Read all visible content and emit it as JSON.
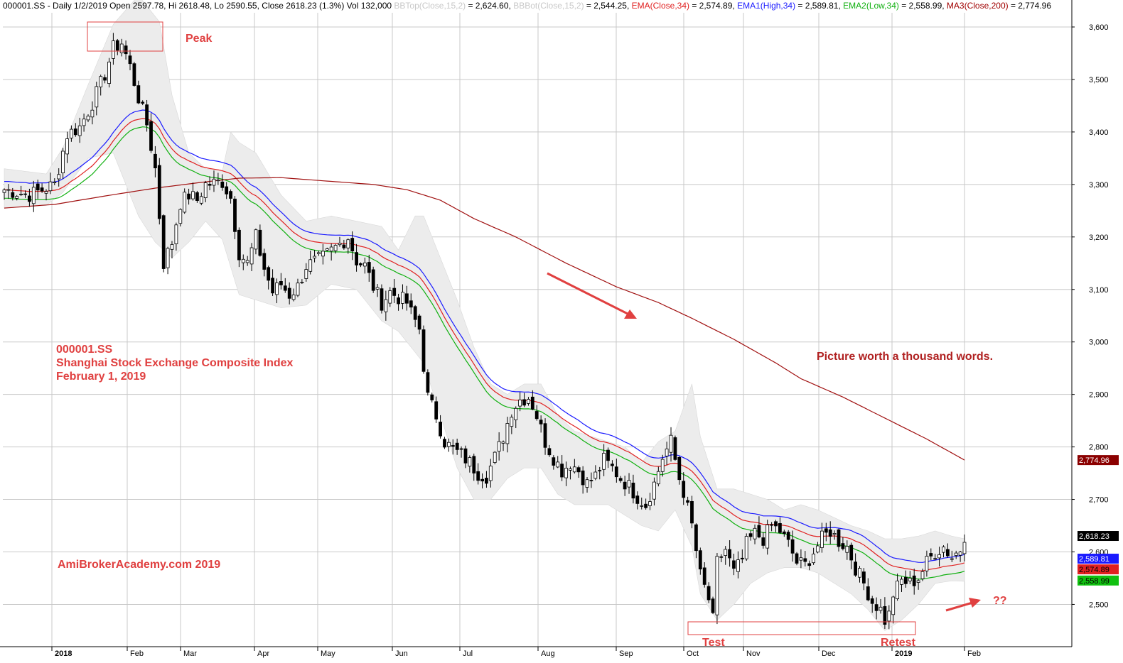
{
  "header": {
    "segments": [
      {
        "text": "000001.SS - Daily 1/2/2019 Open 2597.78, Hi 2618.48, Lo 2590.55, Close 2618.23 (1.3%) Vol 132,000 ",
        "color": "#000000"
      },
      {
        "text": "BBTop(Close,15,2)",
        "color": "#c8c8c8"
      },
      {
        "text": " = 2,624.60, ",
        "color": "#000000"
      },
      {
        "text": "BBBot(Close,15,2)",
        "color": "#c8c8c8"
      },
      {
        "text": " = 2,544.25, ",
        "color": "#000000"
      },
      {
        "text": "EMA(Close,34)",
        "color": "#e02020"
      },
      {
        "text": " = 2,574.89, ",
        "color": "#000000"
      },
      {
        "text": "EMA1(High,34)",
        "color": "#1a1aff"
      },
      {
        "text": " = 2,589.81, ",
        "color": "#000000"
      },
      {
        "text": "EMA2(Low,34)",
        "color": "#10b010"
      },
      {
        "text": " = 2,558.99, ",
        "color": "#000000"
      },
      {
        "text": "MA3(Close,200)",
        "color": "#a00000"
      },
      {
        "text": " = 2,774.96",
        "color": "#000000"
      }
    ]
  },
  "annotations": {
    "peak": "Peak",
    "symbol": "000001.SS",
    "index_name": "Shanghai Stock Exchange Composite Index",
    "date": "February 1, 2019",
    "watermark": "AmiBrokerAcademy.com  2019",
    "quote": "Picture worth a thousand words.",
    "test": "Test",
    "retest": "Retest",
    "question": "??"
  },
  "colors": {
    "annotation": "#e04040",
    "quote": "#b02020",
    "ema_close": "#e02020",
    "ema_high": "#1a1aff",
    "ema_low": "#10b010",
    "ma200": "#a01010",
    "band_fill": "#ececec",
    "grid": "#c8c8c8"
  },
  "chart_data": {
    "type": "candlestick",
    "title": "",
    "ylim": [
      2420,
      3640
    ],
    "y_ticks": [
      2500,
      2600,
      2700,
      2800,
      2900,
      3000,
      3100,
      3200,
      3300,
      3400,
      3500,
      3600
    ],
    "y_tick_labels": [
      "2,500",
      "2,600",
      "2,700",
      "2,800",
      "2,900",
      "3,000",
      "3,100",
      "3,200",
      "3,300",
      "3,400",
      "3,500",
      "3,600"
    ],
    "x_month_labels": [
      "2018",
      "Feb",
      "Mar",
      "Apr",
      "May",
      "Jun",
      "Jul",
      "Aug",
      "Sep",
      "Oct",
      "Nov",
      "Dec",
      "2019",
      "Feb"
    ],
    "grid": true,
    "last_values": {
      "ma200": "2,774.96",
      "close": "2,618.23",
      "ema_high": "2,589.81",
      "ema_close": "2,574.89",
      "ema_low": "2,558.99"
    },
    "close_path": [
      [
        0,
        3290
      ],
      [
        6,
        3280
      ],
      [
        12,
        3300
      ],
      [
        15,
        3395
      ],
      [
        18,
        3410
      ],
      [
        21,
        3455
      ],
      [
        24,
        3510
      ],
      [
        26,
        3560
      ],
      [
        28,
        3570
      ],
      [
        30,
        3525
      ],
      [
        32,
        3465
      ],
      [
        34,
        3415
      ],
      [
        36,
        3330
      ],
      [
        38,
        3150
      ],
      [
        40,
        3190
      ],
      [
        42,
        3265
      ],
      [
        44,
        3280
      ],
      [
        46,
        3270
      ],
      [
        48,
        3300
      ],
      [
        52,
        3305
      ],
      [
        54,
        3275
      ],
      [
        56,
        3170
      ],
      [
        58,
        3150
      ],
      [
        60,
        3200
      ],
      [
        62,
        3140
      ],
      [
        64,
        3095
      ],
      [
        66,
        3110
      ],
      [
        68,
        3090
      ],
      [
        70,
        3105
      ],
      [
        72,
        3145
      ],
      [
        76,
        3160
      ],
      [
        79,
        3180
      ],
      [
        82,
        3200
      ],
      [
        84,
        3155
      ],
      [
        86,
        3145
      ],
      [
        88,
        3105
      ],
      [
        90,
        3075
      ],
      [
        92,
        3095
      ],
      [
        94,
        3085
      ],
      [
        96,
        3075
      ],
      [
        97,
        3055
      ],
      [
        99,
        3025
      ],
      [
        100,
        2955
      ],
      [
        101,
        2895
      ],
      [
        103,
        2860
      ],
      [
        105,
        2810
      ],
      [
        107,
        2795
      ],
      [
        109,
        2785
      ],
      [
        111,
        2770
      ],
      [
        113,
        2750
      ],
      [
        115,
        2745
      ],
      [
        117,
        2780
      ],
      [
        119,
        2820
      ],
      [
        121,
        2870
      ],
      [
        123,
        2890
      ],
      [
        125,
        2895
      ],
      [
        126,
        2880
      ],
      [
        127,
        2860
      ],
      [
        129,
        2810
      ],
      [
        131,
        2780
      ],
      [
        133,
        2755
      ],
      [
        135,
        2770
      ],
      [
        137,
        2755
      ],
      [
        139,
        2730
      ],
      [
        141,
        2745
      ],
      [
        143,
        2775
      ],
      [
        145,
        2760
      ],
      [
        147,
        2740
      ],
      [
        149,
        2725
      ],
      [
        151,
        2705
      ],
      [
        153,
        2690
      ],
      [
        155,
        2730
      ],
      [
        157,
        2780
      ],
      [
        159,
        2810
      ],
      [
        161,
        2740
      ],
      [
        162,
        2715
      ],
      [
        164,
        2650
      ],
      [
        166,
        2555
      ],
      [
        168,
        2510
      ],
      [
        169,
        2470
      ],
      [
        170,
        2580
      ],
      [
        172,
        2605
      ],
      [
        174,
        2560
      ],
      [
        176,
        2585
      ],
      [
        177,
        2615
      ],
      [
        179,
        2635
      ],
      [
        181,
        2625
      ],
      [
        183,
        2650
      ],
      [
        185,
        2640
      ],
      [
        187,
        2615
      ],
      [
        189,
        2580
      ],
      [
        191,
        2575
      ],
      [
        193,
        2600
      ],
      [
        195,
        2625
      ],
      [
        197,
        2640
      ],
      [
        199,
        2620
      ],
      [
        201,
        2610
      ],
      [
        203,
        2570
      ],
      [
        205,
        2540
      ],
      [
        207,
        2505
      ],
      [
        209,
        2490
      ],
      [
        210,
        2470
      ],
      [
        211,
        2480
      ],
      [
        212,
        2520
      ],
      [
        214,
        2545
      ],
      [
        216,
        2540
      ],
      [
        218,
        2550
      ],
      [
        220,
        2580
      ],
      [
        222,
        2600
      ],
      [
        224,
        2610
      ],
      [
        226,
        2590
      ],
      [
        228,
        2605
      ],
      [
        229,
        2618
      ]
    ],
    "ma200_path": [
      [
        0,
        3255
      ],
      [
        12,
        3262
      ],
      [
        24,
        3278
      ],
      [
        36,
        3293
      ],
      [
        48,
        3305
      ],
      [
        56,
        3312
      ],
      [
        66,
        3313
      ],
      [
        76,
        3307
      ],
      [
        88,
        3300
      ],
      [
        96,
        3290
      ],
      [
        104,
        3270
      ],
      [
        112,
        3235
      ],
      [
        122,
        3200
      ],
      [
        134,
        3150
      ],
      [
        146,
        3105
      ],
      [
        156,
        3075
      ],
      [
        164,
        3045
      ],
      [
        174,
        3005
      ],
      [
        184,
        2960
      ],
      [
        190,
        2930
      ],
      [
        200,
        2895
      ],
      [
        210,
        2855
      ],
      [
        220,
        2815
      ],
      [
        229,
        2775
      ]
    ],
    "band_upper_path": [
      [
        0,
        3330
      ],
      [
        10,
        3320
      ],
      [
        14,
        3370
      ],
      [
        20,
        3490
      ],
      [
        26,
        3605
      ],
      [
        32,
        3660
      ],
      [
        37,
        3610
      ],
      [
        40,
        3470
      ],
      [
        44,
        3360
      ],
      [
        48,
        3330
      ],
      [
        52,
        3325
      ],
      [
        54,
        3400
      ],
      [
        56,
        3380
      ],
      [
        60,
        3360
      ],
      [
        66,
        3280
      ],
      [
        72,
        3230
      ],
      [
        78,
        3240
      ],
      [
        84,
        3230
      ],
      [
        90,
        3220
      ],
      [
        94,
        3175
      ],
      [
        98,
        3240
      ],
      [
        100,
        3240
      ],
      [
        104,
        3160
      ],
      [
        108,
        3080
      ],
      [
        112,
        2990
      ],
      [
        116,
        2920
      ],
      [
        120,
        2900
      ],
      [
        124,
        2920
      ],
      [
        128,
        2920
      ],
      [
        132,
        2860
      ],
      [
        136,
        2830
      ],
      [
        140,
        2820
      ],
      [
        144,
        2810
      ],
      [
        148,
        2800
      ],
      [
        152,
        2770
      ],
      [
        156,
        2810
      ],
      [
        160,
        2830
      ],
      [
        164,
        2920
      ],
      [
        166,
        2820
      ],
      [
        170,
        2720
      ],
      [
        174,
        2720
      ],
      [
        178,
        2710
      ],
      [
        182,
        2700
      ],
      [
        186,
        2680
      ],
      [
        190,
        2690
      ],
      [
        194,
        2680
      ],
      [
        198,
        2665
      ],
      [
        202,
        2650
      ],
      [
        206,
        2640
      ],
      [
        210,
        2625
      ],
      [
        214,
        2625
      ],
      [
        218,
        2630
      ],
      [
        222,
        2640
      ],
      [
        226,
        2630
      ],
      [
        229,
        2625
      ]
    ],
    "band_lower_path": [
      [
        0,
        3255
      ],
      [
        10,
        3260
      ],
      [
        14,
        3285
      ],
      [
        20,
        3350
      ],
      [
        26,
        3360
      ],
      [
        32,
        3240
      ],
      [
        36,
        3190
      ],
      [
        40,
        3160
      ],
      [
        44,
        3190
      ],
      [
        48,
        3230
      ],
      [
        52,
        3195
      ],
      [
        56,
        3090
      ],
      [
        60,
        3080
      ],
      [
        66,
        3065
      ],
      [
        72,
        3070
      ],
      [
        78,
        3110
      ],
      [
        84,
        3100
      ],
      [
        90,
        3040
      ],
      [
        94,
        3020
      ],
      [
        98,
        2980
      ],
      [
        100,
        2960
      ],
      [
        104,
        2860
      ],
      [
        108,
        2760
      ],
      [
        112,
        2700
      ],
      [
        116,
        2700
      ],
      [
        120,
        2740
      ],
      [
        124,
        2760
      ],
      [
        128,
        2760
      ],
      [
        132,
        2710
      ],
      [
        136,
        2690
      ],
      [
        140,
        2690
      ],
      [
        144,
        2690
      ],
      [
        148,
        2670
      ],
      [
        152,
        2650
      ],
      [
        156,
        2640
      ],
      [
        160,
        2680
      ],
      [
        164,
        2610
      ],
      [
        166,
        2520
      ],
      [
        170,
        2470
      ],
      [
        174,
        2500
      ],
      [
        178,
        2540
      ],
      [
        182,
        2560
      ],
      [
        186,
        2570
      ],
      [
        190,
        2570
      ],
      [
        194,
        2560
      ],
      [
        198,
        2540
      ],
      [
        202,
        2520
      ],
      [
        206,
        2490
      ],
      [
        210,
        2450
      ],
      [
        214,
        2470
      ],
      [
        218,
        2500
      ],
      [
        222,
        2540
      ],
      [
        226,
        2545
      ],
      [
        229,
        2544
      ]
    ]
  }
}
